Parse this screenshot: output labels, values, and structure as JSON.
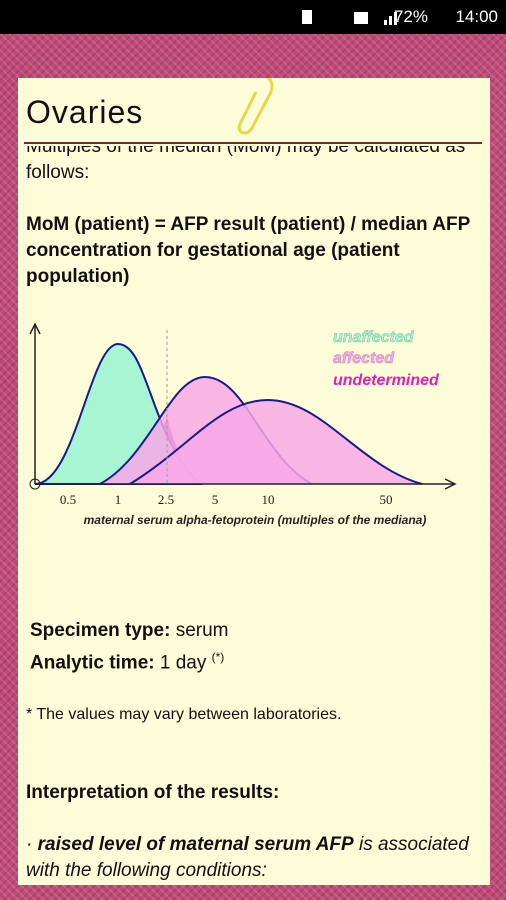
{
  "status_bar": {
    "battery": "72%",
    "time": "14:00"
  },
  "header": {
    "title": "Ovaries"
  },
  "content": {
    "intro": "Multiples of the median (MoM) may be calculated as follows:",
    "formula": "MoM (patient) = AFP result (patient) / median AFP concentration for gestational age (patient population)",
    "figure": {
      "legend": [
        "unaffected",
        "affected",
        "undetermined"
      ],
      "x_labels": [
        "0.5",
        "1",
        "2.5",
        "5",
        "10",
        "50"
      ],
      "x_axis_label": "maternal serum alpha-fetoprotein (multiples of the mediana)"
    },
    "specimen": {
      "label": "Specimen type:",
      "value": "serum"
    },
    "analytic": {
      "label": "Analytic time:",
      "value": "1 day",
      "note": "(*)"
    },
    "footnote": "* The values may vary between laboratories.",
    "interpretation_title": "Interpretation of the results:",
    "bullet": {
      "bold": "raised level of maternal serum AFP",
      "rest": " is associated with the following conditions:"
    }
  }
}
